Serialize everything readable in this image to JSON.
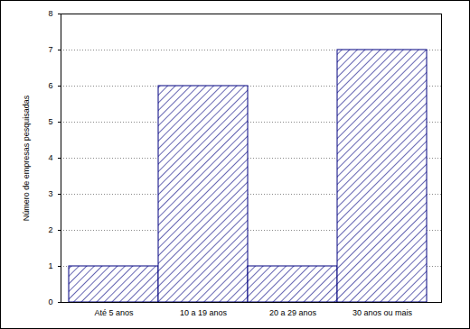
{
  "chart_data": {
    "type": "bar",
    "categories": [
      "Até 5 anos",
      "10 a 19 anos",
      "20 a 29 anos",
      "30 anos ou mais"
    ],
    "values": [
      1,
      6,
      1,
      7
    ],
    "color": "#000080",
    "y_label": "Número de empresas pesquisadas",
    "ylim": [
      0,
      8
    ],
    "yticks": [
      0,
      1,
      2,
      3,
      4,
      5,
      6,
      7,
      8
    ],
    "grid": true
  }
}
